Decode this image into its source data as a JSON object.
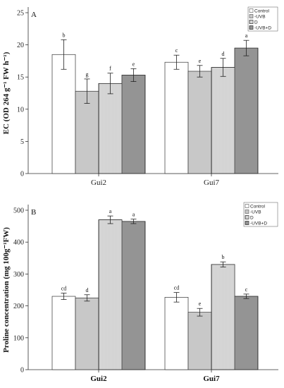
{
  "colors": {
    "control": "#ffffff",
    "uvb": "#c8c8c8",
    "d": "#ffffff",
    "uvbd": "#a8a8a8",
    "stroke": "#333333"
  },
  "chart_data": [
    {
      "type": "bar",
      "panel_label": "A",
      "ylabel": "EC (OD 264 g⁻¹ FW h⁻¹)",
      "ylim": [
        0,
        25
      ],
      "yticks": [
        "0",
        "5",
        "10",
        "15",
        "20",
        "25"
      ],
      "categories": [
        "Gui2",
        "Gui7"
      ],
      "legend_position": "top-right",
      "series": [
        {
          "name": "Control",
          "values": [
            18.5,
            17.3
          ],
          "errors": [
            2.3,
            1.1
          ],
          "letters": [
            "b",
            "c"
          ],
          "fill": "control",
          "pattern": "none"
        },
        {
          "name": "-UVB",
          "values": [
            12.8,
            15.9
          ],
          "errors": [
            1.9,
            0.9
          ],
          "letters": [
            "g",
            "e"
          ],
          "fill": "uvb",
          "pattern": "none"
        },
        {
          "name": "D",
          "values": [
            14.0,
            16.5
          ],
          "errors": [
            1.6,
            1.4
          ],
          "letters": [
            "f",
            "d"
          ],
          "fill": "d",
          "pattern": "vlines"
        },
        {
          "name": "-UVB+D",
          "values": [
            15.3,
            19.5
          ],
          "errors": [
            1.0,
            1.2
          ],
          "letters": [
            "e",
            "a"
          ],
          "fill": "uvbd",
          "pattern": "vlines"
        }
      ]
    },
    {
      "type": "bar",
      "panel_label": "B",
      "ylabel": "Proline concentration (mg 100g⁻¹FW)",
      "ylim": [
        0,
        500
      ],
      "yticks": [
        "0",
        "100",
        "200",
        "300",
        "400",
        "500"
      ],
      "categories": [
        "Gui2",
        "Gui7"
      ],
      "legend_position": "top-right",
      "series": [
        {
          "name": "Control",
          "values": [
            230,
            227
          ],
          "errors": [
            10,
            15
          ],
          "letters": [
            "cd",
            "cd"
          ],
          "fill": "control",
          "pattern": "none"
        },
        {
          "name": "-UVB",
          "values": [
            225,
            180
          ],
          "errors": [
            10,
            12
          ],
          "letters": [
            "d",
            "e"
          ],
          "fill": "uvb",
          "pattern": "none"
        },
        {
          "name": "D",
          "values": [
            470,
            330
          ],
          "errors": [
            12,
            8
          ],
          "letters": [
            "a",
            "b"
          ],
          "fill": "d",
          "pattern": "vlines"
        },
        {
          "name": "-UVB+D",
          "values": [
            465,
            230
          ],
          "errors": [
            7,
            7
          ],
          "letters": [
            "a",
            "c"
          ],
          "fill": "uvbd",
          "pattern": "vlines"
        }
      ]
    }
  ]
}
